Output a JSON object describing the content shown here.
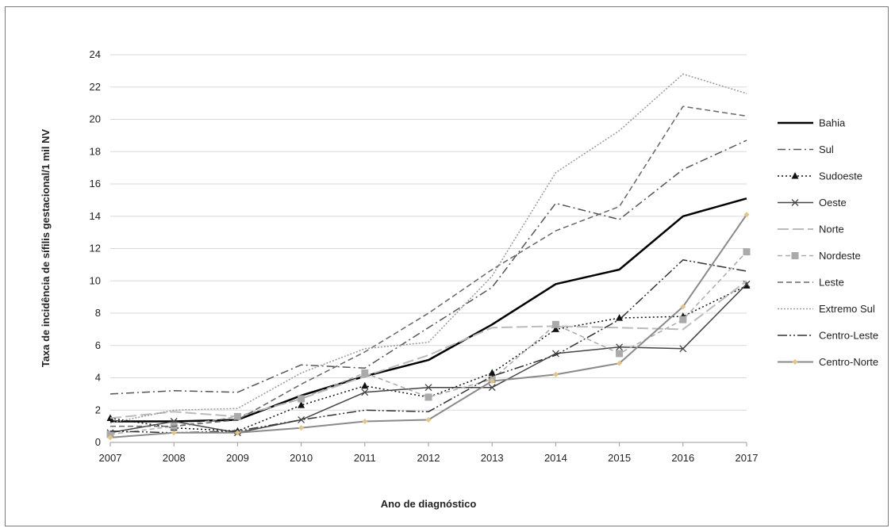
{
  "chart_data": {
    "type": "line",
    "title": "",
    "xlabel": "Ano de diagnóstico",
    "ylabel": "Taxa de incidência de sífilis gestacional/1 mil NV",
    "x": [
      2007,
      2008,
      2009,
      2010,
      2011,
      2012,
      2013,
      2014,
      2015,
      2016,
      2017
    ],
    "ylim": [
      0,
      24
    ],
    "yticks": [
      0,
      2,
      4,
      6,
      8,
      10,
      12,
      14,
      16,
      18,
      20,
      22,
      24
    ],
    "grid": true,
    "legend_position": "right",
    "series": [
      {
        "name": "Bahia",
        "color": "#000000",
        "width": 2.5,
        "dash": "",
        "marker": "none",
        "values": [
          1.3,
          1.3,
          1.4,
          2.9,
          4.1,
          5.1,
          7.3,
          9.8,
          10.7,
          14.0,
          15.1
        ]
      },
      {
        "name": "Sul",
        "color": "#555555",
        "width": 1.5,
        "dash": "10,4,2,4",
        "marker": "none",
        "values": [
          3.0,
          3.2,
          3.1,
          4.8,
          4.6,
          7.1,
          9.6,
          14.8,
          13.8,
          16.9,
          18.7
        ]
      },
      {
        "name": "Sudoeste",
        "color": "#111111",
        "width": 1.5,
        "dash": "2,3",
        "marker": "triangle",
        "values": [
          1.5,
          0.9,
          0.7,
          2.3,
          3.5,
          2.8,
          4.3,
          7.0,
          7.7,
          7.8,
          9.7
        ]
      },
      {
        "name": "Oeste",
        "color": "#444444",
        "width": 1.5,
        "dash": "",
        "marker": "x",
        "values": [
          0.6,
          1.3,
          0.6,
          1.4,
          3.1,
          3.4,
          3.4,
          5.5,
          5.9,
          5.8,
          9.8
        ]
      },
      {
        "name": "Norte",
        "color": "#bbbbbb",
        "width": 2,
        "dash": "14,5",
        "marker": "none",
        "values": [
          1.5,
          1.9,
          1.6,
          2.7,
          4.1,
          5.4,
          7.1,
          7.2,
          7.1,
          7.0,
          10.0
        ]
      },
      {
        "name": "Nordeste",
        "color": "#aaaaaa",
        "width": 1.5,
        "dash": "6,4",
        "marker": "square",
        "values": [
          0.5,
          1.0,
          1.6,
          2.7,
          4.3,
          2.8,
          3.9,
          7.3,
          5.5,
          7.6,
          11.8
        ]
      },
      {
        "name": "Leste",
        "color": "#666666",
        "width": 1.5,
        "dash": "7,4",
        "marker": "none",
        "values": [
          1.0,
          1.0,
          1.4,
          3.6,
          5.6,
          8.0,
          10.7,
          13.1,
          14.6,
          20.8,
          20.2
        ]
      },
      {
        "name": "Extremo Sul",
        "color": "#999999",
        "width": 1.5,
        "dash": "2,2",
        "marker": "none",
        "values": [
          1.2,
          2.0,
          2.1,
          4.3,
          5.8,
          6.2,
          10.3,
          16.7,
          19.3,
          22.8,
          21.6
        ]
      },
      {
        "name": "Centro-Leste",
        "color": "#333333",
        "width": 1.5,
        "dash": "12,3,2,3,2,3",
        "marker": "none",
        "values": [
          0.7,
          0.6,
          0.7,
          1.4,
          2.0,
          1.9,
          4.1,
          5.4,
          7.6,
          11.3,
          10.6
        ]
      },
      {
        "name": "Centro-Norte",
        "color": "#8a8a8a",
        "width": 2,
        "dash": "",
        "marker": "diamond",
        "values": [
          0.3,
          0.6,
          0.6,
          0.9,
          1.3,
          1.4,
          3.8,
          4.2,
          4.9,
          8.4,
          14.1
        ]
      }
    ]
  }
}
